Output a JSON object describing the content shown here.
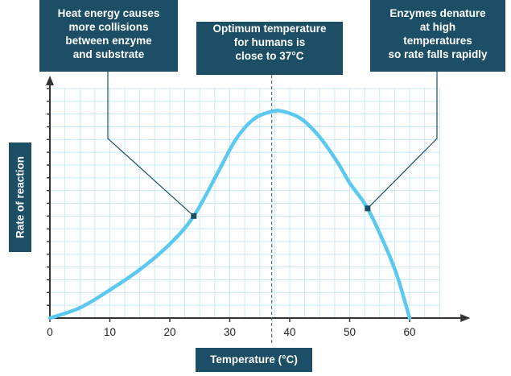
{
  "chart_data": {
    "type": "line",
    "x": [
      0,
      5,
      10,
      15,
      20,
      24,
      28,
      31,
      34,
      37,
      39,
      42,
      45,
      48,
      50,
      53,
      56,
      58,
      60
    ],
    "series": [
      {
        "values": [
          0,
          4,
          11,
          19,
          29,
          40,
          57,
          70,
          78,
          81,
          81,
          78,
          71,
          61,
          53,
          43,
          28,
          16,
          0
        ]
      }
    ],
    "xlabel": "Temperature (°C)",
    "ylabel": "Rate of reaction",
    "xticks": [
      "0",
      "10",
      "20",
      "30",
      "40",
      "50",
      "60"
    ],
    "xlim": [
      0,
      65
    ],
    "ylim": [
      0,
      90
    ],
    "grid": true,
    "colors": {
      "curve": "#5bc8f0",
      "grid": "#c8e9f7",
      "box": "#1c4f66",
      "axis": "#333333"
    },
    "optimum_x": 37,
    "annotations": [
      {
        "text": "Heat energy causes\nmore collisions\nbetween enzyme\nand substrate",
        "x": 24,
        "y": 40
      },
      {
        "text": "Optimum temperature\nfor humans is\nclose to 37°C",
        "x": 37
      },
      {
        "text": "Enzymes denature\nat high\ntemperatures\nso rate falls rapidly",
        "x": 53,
        "y": 43
      }
    ]
  }
}
